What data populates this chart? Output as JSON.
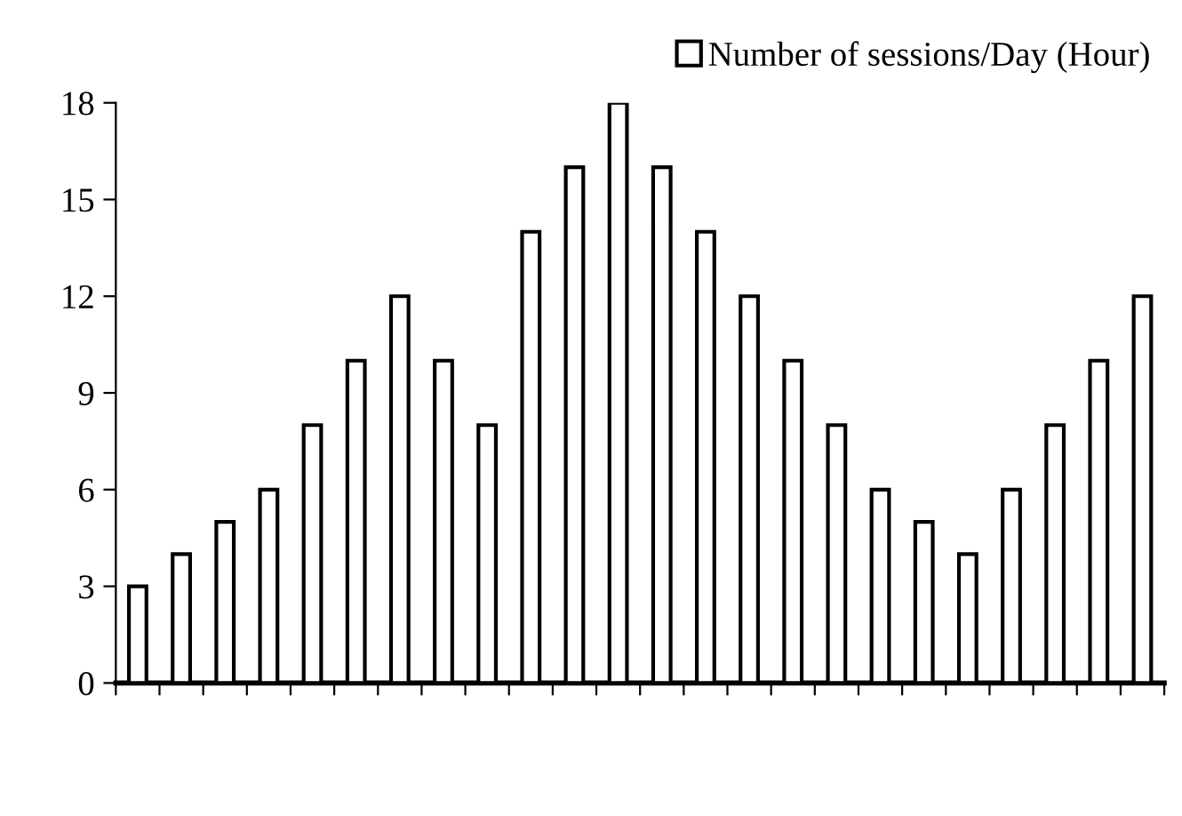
{
  "chart_data": {
    "type": "bar",
    "categories": [
      null,
      null,
      null,
      null,
      null,
      null,
      null,
      null,
      null,
      null,
      null,
      null,
      null,
      null,
      null,
      null,
      null,
      null,
      null,
      null,
      null,
      null,
      null,
      null
    ],
    "series": [
      {
        "name": "Number of sessions/Day (Hour)",
        "color": "#ffffff",
        "values": [
          3,
          4,
          5,
          6,
          8,
          10,
          12,
          10,
          8,
          14,
          16,
          18,
          16,
          14,
          12,
          10,
          8,
          6,
          5,
          4,
          6,
          8,
          10,
          12
        ]
      }
    ],
    "ylim": [
      0,
      18
    ],
    "yticks": [
      0,
      3,
      6,
      9,
      12,
      15,
      18
    ],
    "grid": false,
    "legend": "top right"
  }
}
